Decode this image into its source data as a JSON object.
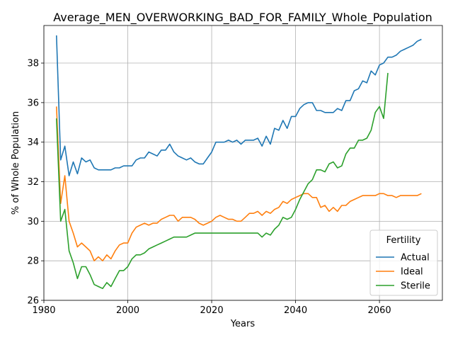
{
  "chart_data": {
    "type": "line",
    "title": "Average_MEN_OVERWORKING_BAD_FOR_FAMILY_Whole_Population",
    "xlabel": "Years",
    "ylabel": "% of Whole Population",
    "xlim": [
      1980,
      2075
    ],
    "ylim": [
      26,
      39.9
    ],
    "xticks": [
      1980,
      2000,
      2020,
      2040,
      2060
    ],
    "yticks": [
      26,
      28,
      30,
      32,
      34,
      36,
      38
    ],
    "grid": true,
    "legend": {
      "title": "Fertility",
      "placement": "lower-right"
    },
    "series": [
      {
        "name": "Actual",
        "color": "#1f77b4",
        "x": [
          1983,
          1984,
          1985,
          1986,
          1987,
          1988,
          1989,
          1990,
          1991,
          1992,
          1993,
          1994,
          1995,
          1996,
          1997,
          1998,
          1999,
          2000,
          2001,
          2002,
          2003,
          2004,
          2005,
          2006,
          2007,
          2008,
          2009,
          2010,
          2011,
          2012,
          2013,
          2014,
          2015,
          2016,
          2017,
          2018,
          2019,
          2020,
          2021,
          2022,
          2023,
          2024,
          2025,
          2026,
          2027,
          2028,
          2029,
          2030,
          2031,
          2032,
          2033,
          2034,
          2035,
          2036,
          2037,
          2038,
          2039,
          2040,
          2041,
          2042,
          2043,
          2044,
          2045,
          2046,
          2047,
          2048,
          2049,
          2050,
          2051,
          2052,
          2053,
          2054,
          2055,
          2056,
          2057,
          2058,
          2059,
          2060,
          2061,
          2062,
          2063,
          2064,
          2065,
          2066,
          2067,
          2068,
          2069,
          2070
        ],
        "values": [
          39.4,
          33.1,
          33.8,
          32.3,
          33.0,
          32.4,
          33.2,
          33.0,
          33.1,
          32.7,
          32.6,
          32.6,
          32.6,
          32.6,
          32.7,
          32.7,
          32.8,
          32.8,
          32.8,
          33.1,
          33.2,
          33.2,
          33.5,
          33.4,
          33.3,
          33.6,
          33.6,
          33.9,
          33.5,
          33.3,
          33.2,
          33.1,
          33.2,
          33.0,
          32.9,
          32.9,
          33.2,
          33.5,
          34.0,
          34.0,
          34.0,
          34.1,
          34.0,
          34.1,
          33.9,
          34.1,
          34.1,
          34.1,
          34.2,
          33.8,
          34.3,
          33.9,
          34.7,
          34.6,
          35.1,
          34.7,
          35.3,
          35.3,
          35.7,
          35.9,
          36.0,
          36.0,
          35.6,
          35.6,
          35.5,
          35.5,
          35.5,
          35.7,
          35.6,
          36.1,
          36.1,
          36.6,
          36.7,
          37.1,
          37.0,
          37.6,
          37.4,
          37.9,
          38.0,
          38.3,
          38.3,
          38.4,
          38.6,
          38.7,
          38.8,
          38.9,
          39.1,
          39.2
        ]
      },
      {
        "name": "Ideal",
        "color": "#ff7f0e",
        "x": [
          1983,
          1984,
          1985,
          1986,
          1987,
          1988,
          1989,
          1990,
          1991,
          1992,
          1993,
          1994,
          1995,
          1996,
          1997,
          1998,
          1999,
          2000,
          2001,
          2002,
          2003,
          2004,
          2005,
          2006,
          2007,
          2008,
          2009,
          2010,
          2011,
          2012,
          2013,
          2014,
          2015,
          2016,
          2017,
          2018,
          2019,
          2020,
          2021,
          2022,
          2023,
          2024,
          2025,
          2026,
          2027,
          2028,
          2029,
          2030,
          2031,
          2032,
          2033,
          2034,
          2035,
          2036,
          2037,
          2038,
          2039,
          2040,
          2041,
          2042,
          2043,
          2044,
          2045,
          2046,
          2047,
          2048,
          2049,
          2050,
          2051,
          2052,
          2053,
          2054,
          2055,
          2056,
          2057,
          2058,
          2059,
          2060,
          2061,
          2062,
          2063,
          2064,
          2065,
          2066,
          2067,
          2068,
          2069,
          2070
        ],
        "values": [
          35.8,
          30.9,
          32.3,
          30.0,
          29.4,
          28.7,
          28.9,
          28.7,
          28.5,
          28.0,
          28.2,
          28.0,
          28.3,
          28.1,
          28.5,
          28.8,
          28.9,
          28.9,
          29.4,
          29.7,
          29.8,
          29.9,
          29.8,
          29.9,
          29.9,
          30.1,
          30.2,
          30.3,
          30.3,
          30.0,
          30.2,
          30.2,
          30.2,
          30.1,
          29.9,
          29.8,
          29.9,
          30.0,
          30.2,
          30.3,
          30.2,
          30.1,
          30.1,
          30.0,
          30.0,
          30.2,
          30.4,
          30.4,
          30.5,
          30.3,
          30.5,
          30.4,
          30.6,
          30.7,
          31.0,
          30.9,
          31.1,
          31.2,
          31.3,
          31.4,
          31.4,
          31.2,
          31.2,
          30.7,
          30.8,
          30.5,
          30.7,
          30.5,
          30.8,
          30.8,
          31.0,
          31.1,
          31.2,
          31.3,
          31.3,
          31.3,
          31.3,
          31.4,
          31.4,
          31.3,
          31.3,
          31.2,
          31.3,
          31.3,
          31.3,
          31.3,
          31.3,
          31.4
        ]
      },
      {
        "name": "Sterile",
        "color": "#2ca02c",
        "x": [
          1983,
          1984,
          1985,
          1986,
          1987,
          1988,
          1989,
          1990,
          1991,
          1992,
          1993,
          1994,
          1995,
          1996,
          1997,
          1998,
          1999,
          2000,
          2001,
          2002,
          2003,
          2004,
          2005,
          2006,
          2007,
          2008,
          2009,
          2010,
          2011,
          2012,
          2013,
          2014,
          2015,
          2016,
          2017,
          2018,
          2019,
          2020,
          2021,
          2022,
          2023,
          2024,
          2025,
          2026,
          2027,
          2028,
          2029,
          2030,
          2031,
          2032,
          2033,
          2034,
          2035,
          2036,
          2037,
          2038,
          2039,
          2040,
          2041,
          2042,
          2043,
          2044,
          2045,
          2046,
          2047,
          2048,
          2049,
          2050,
          2051,
          2052,
          2053,
          2054,
          2055,
          2056,
          2057,
          2058,
          2059,
          2060,
          2061,
          2062
        ],
        "values": [
          35.2,
          30.0,
          30.6,
          28.5,
          27.9,
          27.1,
          27.7,
          27.7,
          27.3,
          26.8,
          26.7,
          26.6,
          26.9,
          26.7,
          27.1,
          27.5,
          27.5,
          27.7,
          28.1,
          28.3,
          28.3,
          28.4,
          28.6,
          28.7,
          28.8,
          28.9,
          29.0,
          29.1,
          29.2,
          29.2,
          29.2,
          29.2,
          29.3,
          29.4,
          29.4,
          29.4,
          29.4,
          29.4,
          29.4,
          29.4,
          29.4,
          29.4,
          29.4,
          29.4,
          29.4,
          29.4,
          29.4,
          29.4,
          29.4,
          29.2,
          29.4,
          29.3,
          29.6,
          29.8,
          30.2,
          30.1,
          30.2,
          30.6,
          31.1,
          31.5,
          31.9,
          32.1,
          32.6,
          32.6,
          32.5,
          32.9,
          33.0,
          32.7,
          32.8,
          33.4,
          33.7,
          33.7,
          34.1,
          34.1,
          34.2,
          34.6,
          35.5,
          35.8,
          35.2,
          37.5
        ]
      }
    ]
  }
}
